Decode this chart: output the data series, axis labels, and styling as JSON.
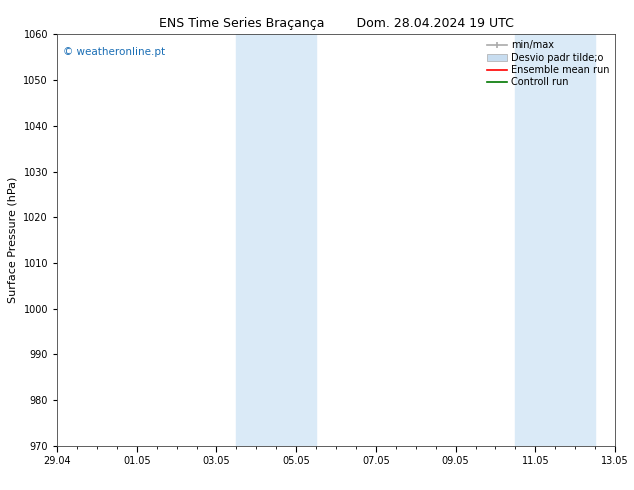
{
  "title": "ENS Time Series Braçança        Dom. 28.04.2024 19 UTC",
  "ylabel": "Surface Pressure (hPa)",
  "ylim": [
    970,
    1060
  ],
  "yticks": [
    970,
    980,
    990,
    1000,
    1010,
    1020,
    1030,
    1040,
    1050,
    1060
  ],
  "xlim_start": 0,
  "xlim_end": 14,
  "xtick_positions": [
    0,
    2,
    4,
    6,
    8,
    10,
    12,
    14
  ],
  "xtick_labels": [
    "29.04",
    "01.05",
    "03.05",
    "05.05",
    "07.05",
    "09.05",
    "11.05",
    "13.05"
  ],
  "shaded_bands": [
    {
      "xmin": 4.5,
      "xmax": 6.5
    },
    {
      "xmin": 11.5,
      "xmax": 13.5
    }
  ],
  "shade_color": "#daeaf7",
  "watermark_text": "© weatheronline.pt",
  "watermark_color": "#1a6eb5",
  "background_color": "#ffffff",
  "title_fontsize": 9,
  "tick_fontsize": 7,
  "ylabel_fontsize": 8,
  "legend_fontsize": 7
}
